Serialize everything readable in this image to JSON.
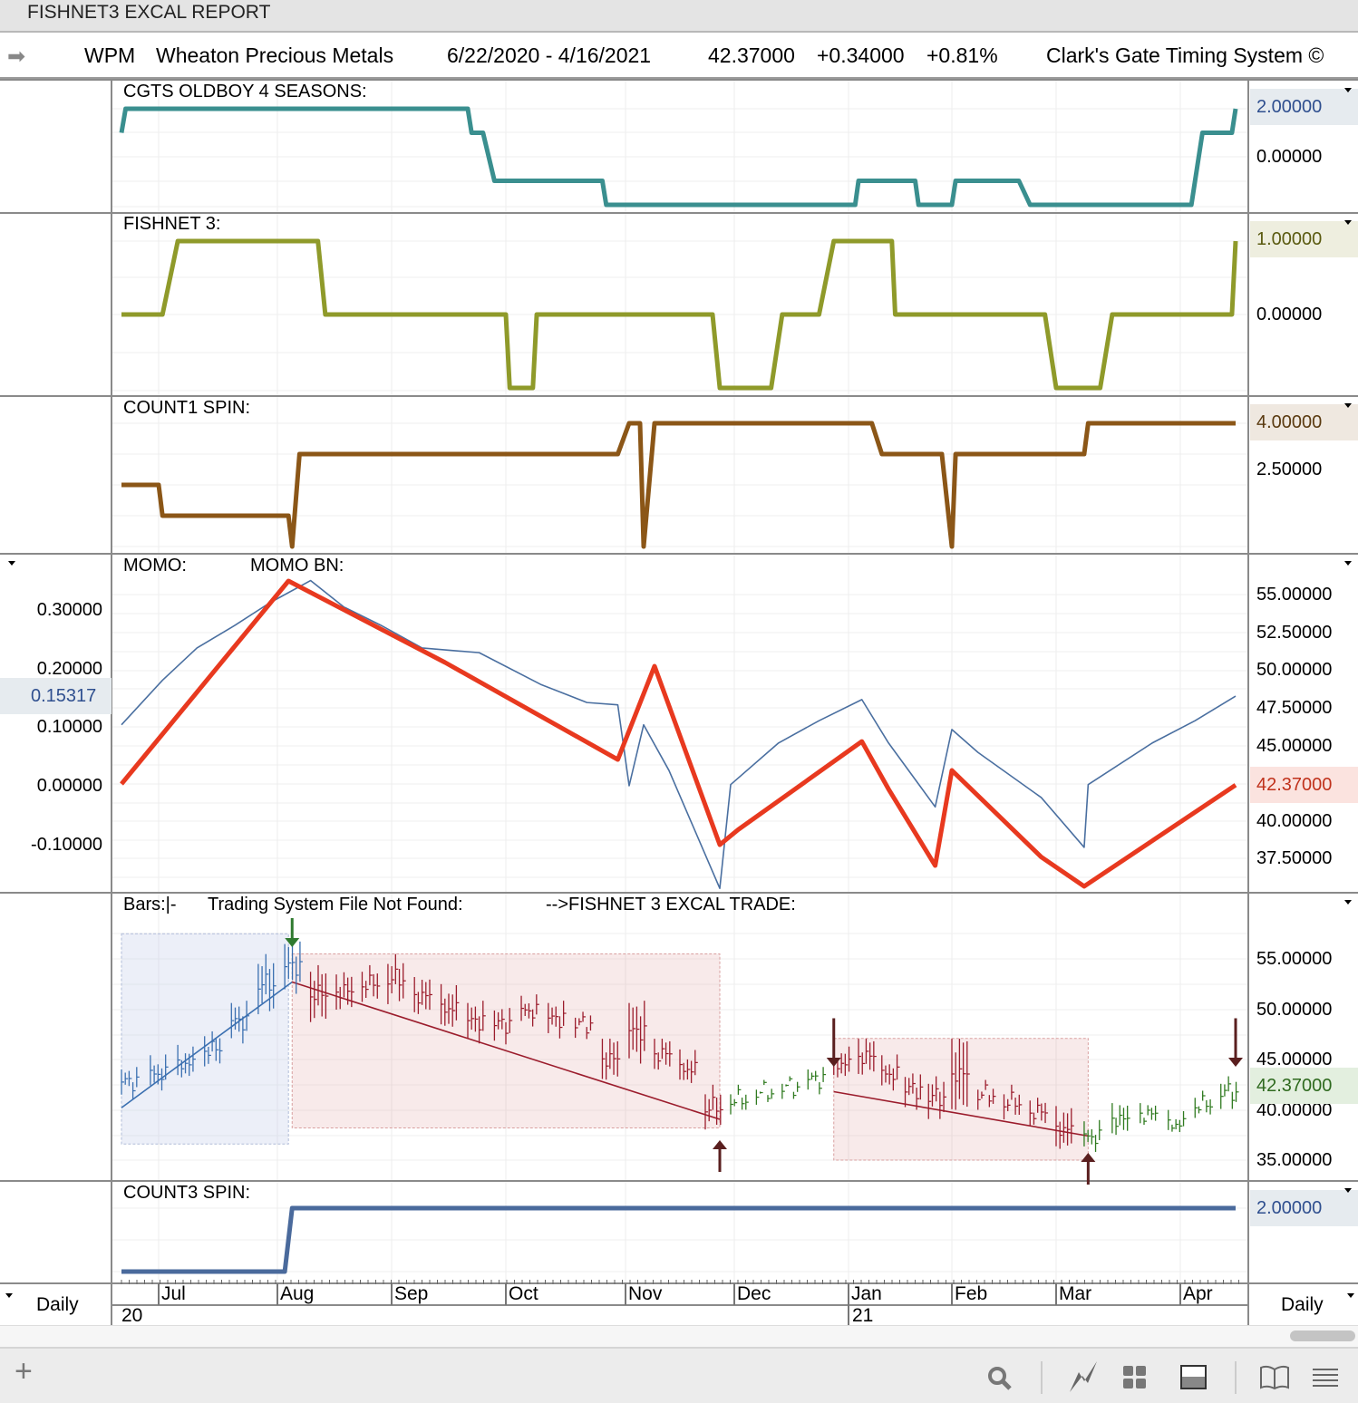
{
  "window": {
    "title": "FISHNET3 EXCAL REPORT"
  },
  "header": {
    "symbol": "WPM",
    "name": "Wheaton Precious Metals",
    "range": "6/22/2020 - 4/16/2021",
    "price": "42.37000",
    "change": "+0.34000",
    "pct": "+0.81%",
    "system": "Clark's Gate Timing System ©"
  },
  "colors": {
    "oldboy": "#3a8f8f",
    "fishnet": "#8f9a2a",
    "count1": "#8b5617",
    "momo": "#e8391f",
    "momo_bn": "#4a6fa0",
    "count3": "#4a6a9c",
    "up_bars": "#3a6fb0",
    "down_bars": "#9b1c2c",
    "neutral_bars": "#2f7a1f"
  },
  "panels": {
    "p1": {
      "title": "CGTS OLDBOY 4 SEASONS:",
      "ticks": [
        "2.00000",
        "0.00000"
      ],
      "tag": "2.00000"
    },
    "p2": {
      "title": "FISHNET 3:",
      "ticks": [
        "1.00000",
        "0.00000"
      ],
      "tag": "1.00000"
    },
    "p3": {
      "title": "COUNT1 SPIN:",
      "ticks": [
        "4.00000",
        "2.50000"
      ],
      "tag": "4.00000"
    },
    "p4": {
      "title1": "MOMO:",
      "title2": "MOMO BN:",
      "left_ticks": [
        "0.30000",
        "0.20000",
        "0.10000",
        "0.00000",
        "-0.10000"
      ],
      "left_tag": "0.15317",
      "right_ticks": [
        "55.00000",
        "52.50000",
        "50.00000",
        "47.50000",
        "45.00000",
        "40.00000",
        "37.50000"
      ],
      "right_tag": "42.37000"
    },
    "p5": {
      "title1": "Bars:|-",
      "title2": "Trading System File Not Found:",
      "title3": "-->FISHNET 3 EXCAL TRADE:",
      "ticks": [
        "55.00000",
        "50.00000",
        "45.00000",
        "40.00000",
        "35.00000"
      ],
      "tag": "42.37000"
    },
    "p6": {
      "title": "COUNT3 SPIN:",
      "ticks": [
        "2.00000"
      ],
      "tag": "2.00000"
    }
  },
  "xaxis": {
    "months": [
      "Jul",
      "Aug",
      "Sep",
      "Oct",
      "Nov",
      "Dec",
      "Jan",
      "Feb",
      "Mar",
      "Apr"
    ],
    "years": [
      "20",
      "21"
    ],
    "period_left": "Daily",
    "period_right": "Daily"
  },
  "chart_data": [
    {
      "type": "line",
      "panel": "p1",
      "title": "CGTS OLDBOY 4 SEASONS",
      "points": [
        [
          "2020-06-22",
          1
        ],
        [
          "2020-06-23",
          2
        ],
        [
          "2020-09-21",
          2
        ],
        [
          "2020-09-22",
          1
        ],
        [
          "2020-09-25",
          1
        ],
        [
          "2020-09-28",
          -1
        ],
        [
          "2020-10-26",
          -1
        ],
        [
          "2020-10-27",
          -2
        ],
        [
          "2021-01-03",
          -2
        ],
        [
          "2021-01-04",
          -1
        ],
        [
          "2021-01-21",
          -1
        ],
        [
          "2021-01-22",
          -2
        ],
        [
          "2021-02-01",
          -2
        ],
        [
          "2021-02-02",
          -1
        ],
        [
          "2021-02-19",
          -1
        ],
        [
          "2021-02-22",
          -2
        ],
        [
          "2021-04-04",
          -2
        ],
        [
          "2021-04-05",
          -1
        ],
        [
          "2021-04-07",
          1
        ],
        [
          "2021-04-15",
          1
        ],
        [
          "2021-04-16",
          2
        ]
      ]
    },
    {
      "type": "line",
      "panel": "p2",
      "title": "FISHNET 3",
      "points": [
        [
          "2020-06-22",
          0
        ],
        [
          "2020-07-02",
          0
        ],
        [
          "2020-07-06",
          1
        ],
        [
          "2020-08-12",
          1
        ],
        [
          "2020-08-14",
          0
        ],
        [
          "2020-10-01",
          0
        ],
        [
          "2020-10-02",
          -1
        ],
        [
          "2020-10-08",
          -1
        ],
        [
          "2020-10-09",
          0
        ],
        [
          "2020-11-25",
          0
        ],
        [
          "2020-11-27",
          -1
        ],
        [
          "2020-12-11",
          -1
        ],
        [
          "2020-12-14",
          0
        ],
        [
          "2020-12-24",
          0
        ],
        [
          "2020-12-28",
          1
        ],
        [
          "2021-01-14",
          1
        ],
        [
          "2021-01-15",
          0
        ],
        [
          "2021-02-26",
          0
        ],
        [
          "2021-03-01",
          -1
        ],
        [
          "2021-03-12",
          -1
        ],
        [
          "2021-03-15",
          0
        ],
        [
          "2021-04-15",
          0
        ],
        [
          "2021-04-16",
          1
        ]
      ]
    },
    {
      "type": "line",
      "panel": "p3",
      "title": "COUNT1 SPIN",
      "points": [
        [
          "2020-06-22",
          2
        ],
        [
          "2020-07-01",
          2
        ],
        [
          "2020-07-02",
          1
        ],
        [
          "2020-08-04",
          1
        ],
        [
          "2020-08-05",
          0
        ],
        [
          "2020-08-07",
          3
        ],
        [
          "2020-10-30",
          3
        ],
        [
          "2020-11-02",
          4
        ],
        [
          "2020-11-05",
          4
        ],
        [
          "2020-11-06",
          0
        ],
        [
          "2020-11-09",
          4
        ],
        [
          "2021-01-08",
          4
        ],
        [
          "2021-01-11",
          3
        ],
        [
          "2021-01-29",
          3
        ],
        [
          "2021-02-01",
          0
        ],
        [
          "2021-02-02",
          3
        ],
        [
          "2021-03-08",
          3
        ],
        [
          "2021-03-09",
          4
        ],
        [
          "2021-04-16",
          4
        ]
      ]
    },
    {
      "type": "line",
      "panel": "p4",
      "series": [
        {
          "name": "MOMO",
          "axis": "right",
          "points": [
            [
              "2020-06-22",
              42.44
            ],
            [
              "2020-08-04",
              55.9
            ],
            [
              "2020-09-15",
              50.5
            ],
            [
              "2020-10-30",
              44.06
            ],
            [
              "2020-11-09",
              50.25
            ],
            [
              "2020-11-27",
              38.41
            ],
            [
              "2020-12-02",
              39.4
            ],
            [
              "2021-01-05",
              45.26
            ],
            [
              "2021-01-13",
              42.1
            ],
            [
              "2021-01-27",
              37.03
            ],
            [
              "2021-02-01",
              43.34
            ],
            [
              "2021-02-25",
              37.6
            ],
            [
              "2021-03-08",
              35.65
            ],
            [
              "2021-04-16",
              42.37
            ]
          ]
        },
        {
          "name": "MOMO BN",
          "axis": "left",
          "points": [
            [
              "2020-06-22",
              0.104
            ],
            [
              "2020-07-02",
              0.18
            ],
            [
              "2020-07-11",
              0.235
            ],
            [
              "2020-07-21",
              0.274
            ],
            [
              "2020-07-30",
              0.312
            ],
            [
              "2020-08-10",
              0.35
            ],
            [
              "2020-08-19",
              0.305
            ],
            [
              "2020-08-29",
              0.274
            ],
            [
              "2020-09-09",
              0.235
            ],
            [
              "2020-09-24",
              0.227
            ],
            [
              "2020-10-10",
              0.173
            ],
            [
              "2020-10-22",
              0.142
            ],
            [
              "2020-10-30",
              0.138
            ],
            [
              "2020-11-02",
              0.0
            ],
            [
              "2020-11-06",
              0.104
            ],
            [
              "2020-11-13",
              0.026
            ],
            [
              "2020-11-27",
              -0.175
            ],
            [
              "2020-11-30",
              0.002
            ],
            [
              "2020-12-13",
              0.073
            ],
            [
              "2020-12-24",
              0.111
            ],
            [
              "2021-01-05",
              0.147
            ],
            [
              "2021-01-13",
              0.073
            ],
            [
              "2021-01-27",
              -0.036
            ],
            [
              "2021-02-01",
              0.096
            ],
            [
              "2021-02-08",
              0.057
            ],
            [
              "2021-02-25",
              -0.02
            ],
            [
              "2021-03-08",
              -0.105
            ],
            [
              "2021-03-09",
              0.002
            ],
            [
              "2021-03-25",
              0.073
            ],
            [
              "2021-04-05",
              0.111
            ],
            [
              "2021-04-16",
              0.153
            ]
          ]
        }
      ]
    },
    {
      "type": "ohlc",
      "panel": "p5",
      "bars": [
        [
          "2020-06-22",
          44,
          41.5,
          "up"
        ],
        [
          "2020-06-29",
          45,
          42,
          "up"
        ],
        [
          "2020-07-06",
          46,
          43,
          "up"
        ],
        [
          "2020-07-13",
          47.5,
          44.5,
          "up"
        ],
        [
          "2020-07-20",
          50.5,
          47,
          "up"
        ],
        [
          "2020-07-27",
          55,
          50,
          "up"
        ],
        [
          "2020-08-03",
          56.5,
          52,
          "up"
        ],
        [
          "2020-08-10",
          54,
          49,
          "down"
        ],
        [
          "2020-08-17",
          53.5,
          50,
          "down"
        ],
        [
          "2020-08-24",
          54,
          51,
          "down"
        ],
        [
          "2020-08-31",
          55,
          51,
          "down"
        ],
        [
          "2020-09-07",
          53,
          49.5,
          "down"
        ],
        [
          "2020-09-14",
          52,
          48,
          "down"
        ],
        [
          "2020-09-21",
          50.5,
          47,
          "down"
        ],
        [
          "2020-09-28",
          50,
          47,
          "down"
        ],
        [
          "2020-10-05",
          51,
          48.5,
          "down"
        ],
        [
          "2020-10-12",
          50.5,
          47.5,
          "down"
        ],
        [
          "2020-10-19",
          49.5,
          47.5,
          "down"
        ],
        [
          "2020-10-26",
          47,
          43,
          "down"
        ],
        [
          "2020-11-02",
          50.5,
          45,
          "down"
        ],
        [
          "2020-11-09",
          47,
          44,
          "down"
        ],
        [
          "2020-11-16",
          45.5,
          42.5,
          "down"
        ],
        [
          "2020-11-23",
          42,
          38.5,
          "down"
        ],
        [
          "2020-11-30",
          42,
          40,
          "neutral"
        ],
        [
          "2020-12-07",
          42.5,
          41,
          "neutral"
        ],
        [
          "2020-12-14",
          43,
          41.5,
          "neutral"
        ],
        [
          "2020-12-21",
          44,
          42,
          "neutral"
        ],
        [
          "2020-12-28",
          46,
          43,
          "down"
        ],
        [
          "2021-01-04",
          47,
          43.5,
          "down"
        ],
        [
          "2021-01-11",
          45,
          42,
          "down"
        ],
        [
          "2021-01-18",
          43.5,
          40.5,
          "down"
        ],
        [
          "2021-01-25",
          43,
          39.5,
          "down"
        ],
        [
          "2021-02-01",
          47,
          40,
          "down"
        ],
        [
          "2021-02-08",
          42.5,
          40.5,
          "down"
        ],
        [
          "2021-02-15",
          42,
          39.5,
          "down"
        ],
        [
          "2021-02-22",
          41,
          38.5,
          "down"
        ],
        [
          "2021-03-01",
          40,
          36,
          "down"
        ],
        [
          "2021-03-08",
          38.5,
          36,
          "neutral"
        ],
        [
          "2021-03-15",
          40.5,
          37.5,
          "neutral"
        ],
        [
          "2021-03-22",
          40.5,
          38.5,
          "neutral"
        ],
        [
          "2021-03-29",
          39.5,
          37.5,
          "neutral"
        ],
        [
          "2021-04-05",
          41.5,
          39.5,
          "neutral"
        ],
        [
          "2021-04-12",
          43,
          40.5,
          "neutral"
        ]
      ],
      "boxes": [
        {
          "from": "2020-06-22",
          "to": "2020-08-04",
          "high": 57.5,
          "low": 36.6,
          "kind": "up"
        },
        {
          "from": "2020-08-05",
          "to": "2020-11-27",
          "high": 55.5,
          "low": 38.2,
          "kind": "down"
        },
        {
          "from": "2020-12-28",
          "to": "2021-03-09",
          "high": 47.1,
          "low": 35,
          "kind": "down"
        }
      ],
      "trendlines": [
        {
          "from": [
            "2020-06-22",
            40.2
          ],
          "to": [
            "2020-08-05",
            52.7
          ],
          "kind": "up"
        },
        {
          "from": [
            "2020-08-05",
            52.7
          ],
          "to": [
            "2020-11-27",
            39.05
          ],
          "kind": "down"
        },
        {
          "from": [
            "2020-12-28",
            41.8
          ],
          "to": [
            "2021-03-09",
            37.4
          ],
          "kind": "down"
        }
      ],
      "signals": [
        {
          "date": "2020-08-05",
          "dir": "down",
          "color": "green"
        },
        {
          "date": "2020-11-27",
          "dir": "up",
          "color": "dark"
        },
        {
          "date": "2020-12-28",
          "dir": "down",
          "color": "dark"
        },
        {
          "date": "2021-03-09",
          "dir": "up",
          "color": "dark"
        },
        {
          "date": "2021-04-16",
          "dir": "down",
          "color": "dark"
        }
      ]
    },
    {
      "type": "line",
      "panel": "p6",
      "title": "COUNT3 SPIN",
      "points": [
        [
          "2020-06-22",
          0
        ],
        [
          "2020-08-03",
          0
        ],
        [
          "2020-08-05",
          2
        ],
        [
          "2021-04-16",
          2
        ]
      ]
    }
  ]
}
